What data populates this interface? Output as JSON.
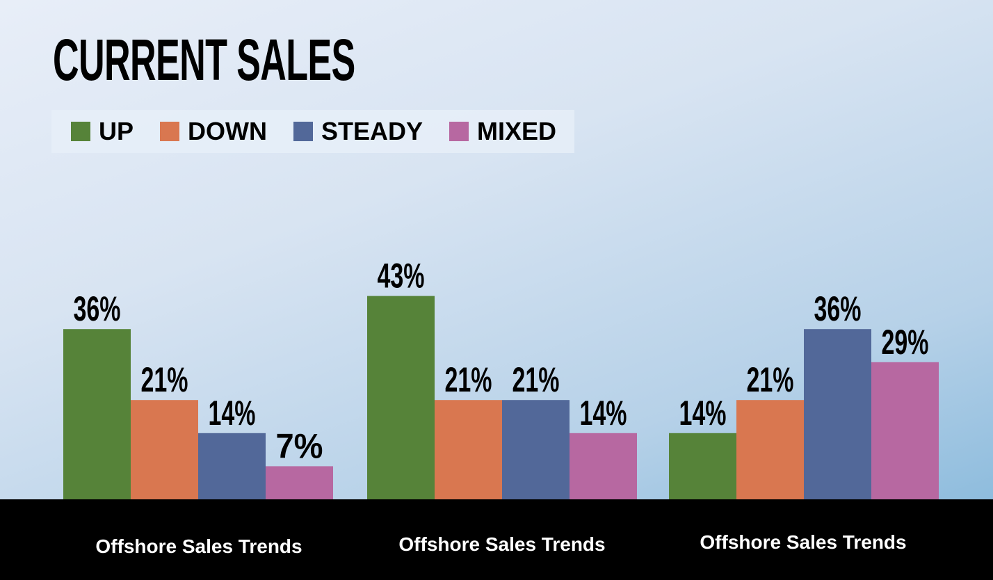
{
  "chart_data": {
    "type": "bar",
    "title": "CURRENT SALES",
    "categories": [
      "Offshore Sales Trends",
      "Offshore Sales Trends",
      "Offshore Sales Trends"
    ],
    "series": [
      {
        "name": "UP",
        "color": "#568339",
        "values": [
          36,
          43,
          14
        ]
      },
      {
        "name": "DOWN",
        "color": "#d97750",
        "values": [
          21,
          21,
          21
        ]
      },
      {
        "name": "STEADY",
        "color": "#526899",
        "values": [
          14,
          21,
          36
        ]
      },
      {
        "name": "MIXED",
        "color": "#b768a1",
        "values": [
          7,
          14,
          29
        ]
      }
    ],
    "value_suffix": "%",
    "legend_position": "top-left",
    "grid": false
  }
}
